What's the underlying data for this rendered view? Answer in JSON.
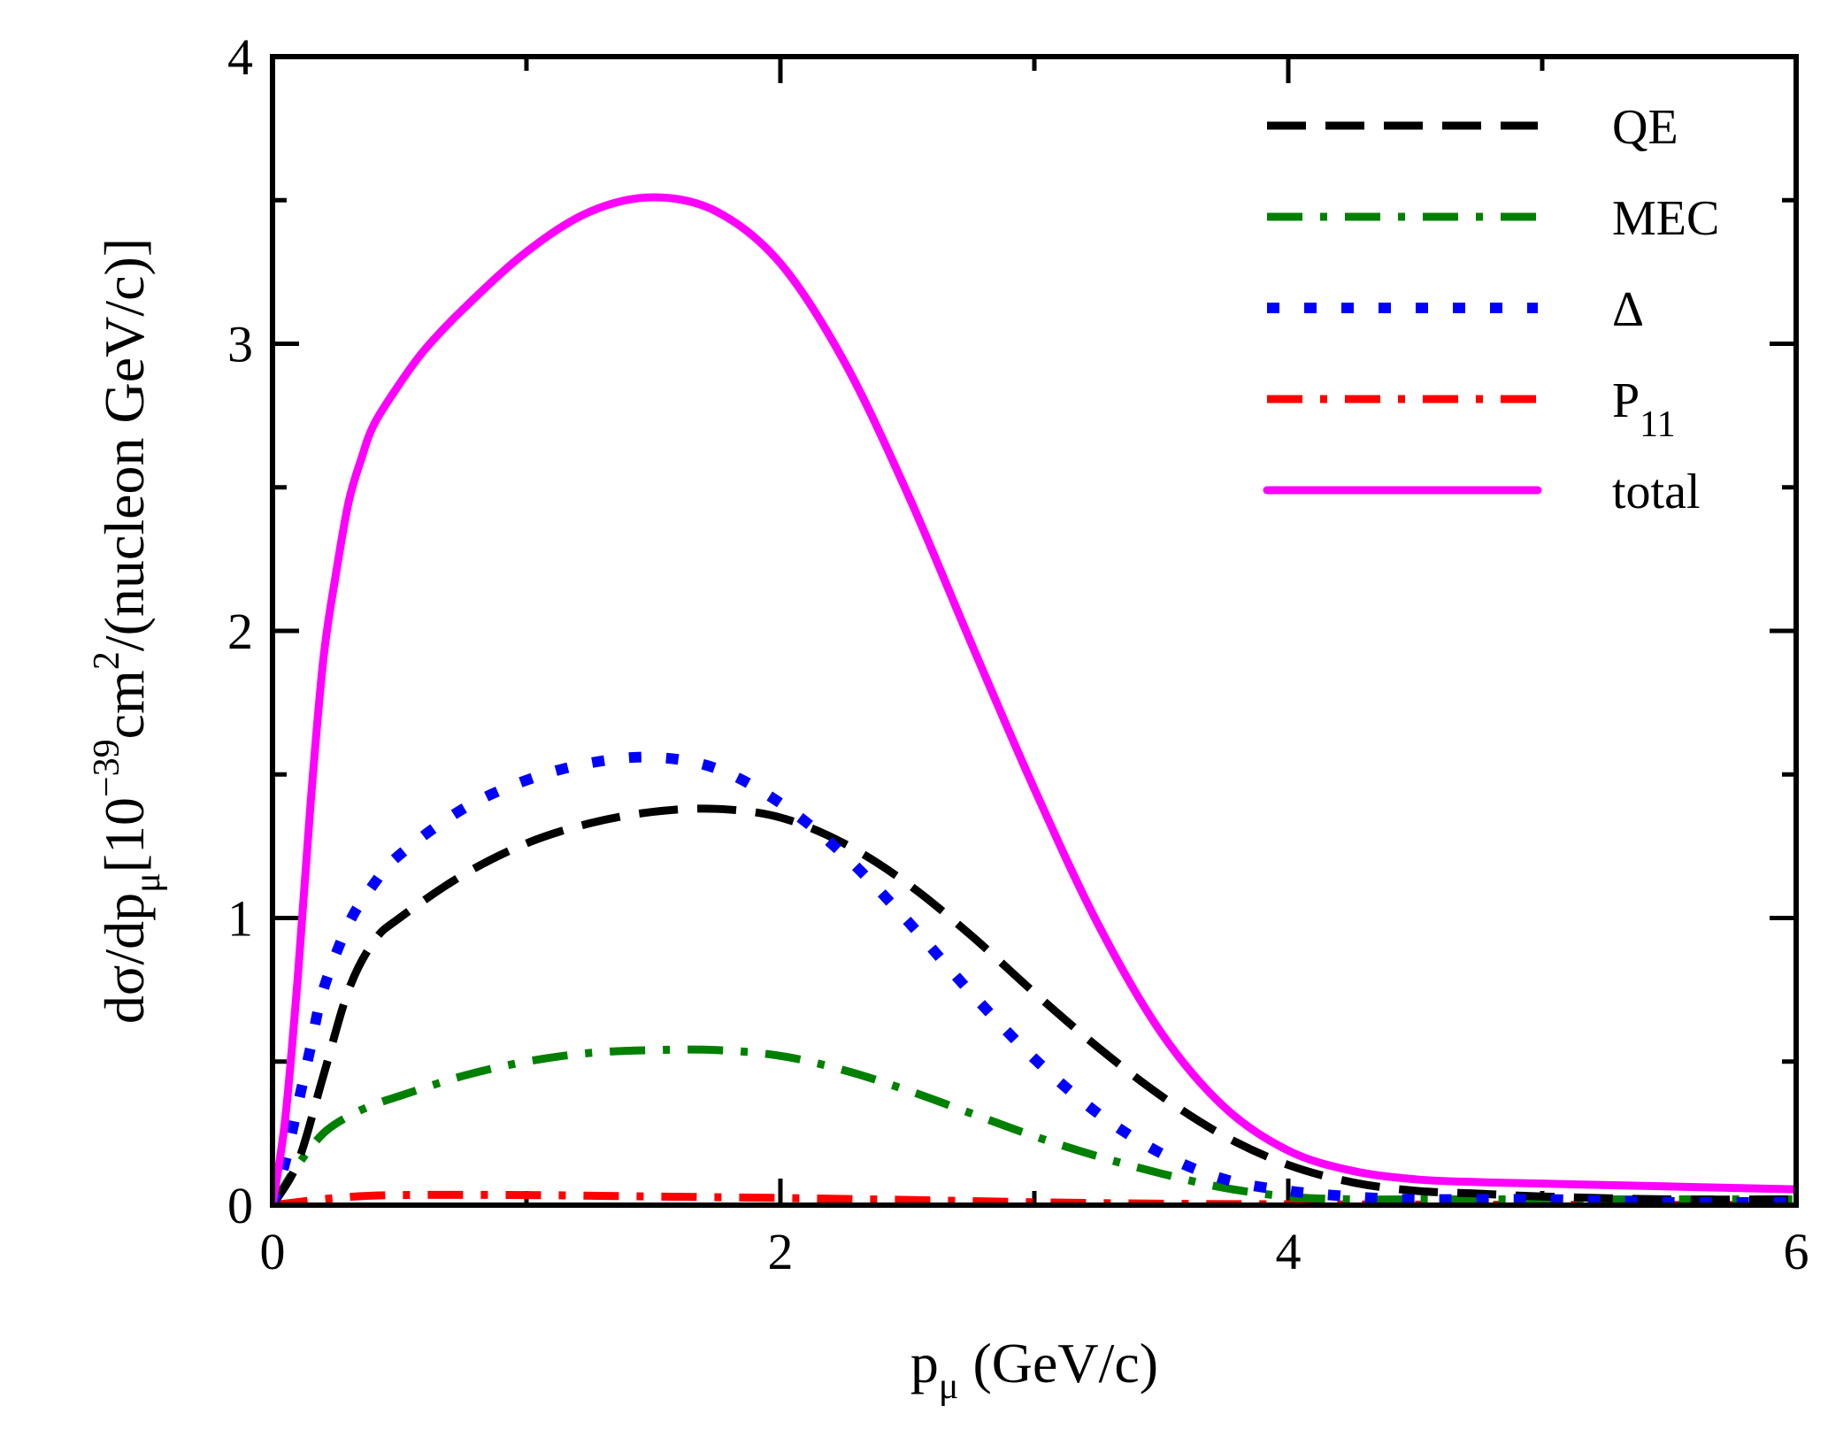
{
  "chart_data": {
    "type": "line",
    "title": "",
    "xlabel_main": "p",
    "xlabel_sub": "μ",
    "xlabel_units": " (GeV/c)",
    "ylabel_prefix": "dσ/dp",
    "ylabel_sub": "μ",
    "ylabel_mid1": "[10",
    "ylabel_exp": "−39",
    "ylabel_mid2": "cm",
    "ylabel_exp2": "2",
    "ylabel_tail": "/(nucleon GeV/c)]",
    "xlim": [
      0,
      6
    ],
    "ylim": [
      0,
      4
    ],
    "xticks": [
      0,
      2,
      4,
      6
    ],
    "xtick_labels": [
      "0",
      "2",
      "4",
      "6"
    ],
    "yticks": [
      0,
      1,
      2,
      3,
      4
    ],
    "ytick_labels": [
      "0",
      "1",
      "2",
      "3",
      "4"
    ],
    "x_minor_step": 1,
    "y_minor_step": 0.5,
    "legend_position": "top-right",
    "series": [
      {
        "name": "QE",
        "label_main": "QE",
        "label_sub": "",
        "color": "#000000",
        "dash": "longdash",
        "x": [
          0.0,
          0.1,
          0.2,
          0.3,
          0.4,
          0.5,
          0.75,
          1.0,
          1.25,
          1.5,
          1.75,
          2.0,
          2.25,
          2.5,
          2.75,
          3.0,
          3.25,
          3.5,
          3.75,
          4.0,
          4.25,
          4.5,
          4.75,
          5.0,
          5.5,
          6.0
        ],
        "y": [
          0.0,
          0.15,
          0.45,
          0.75,
          0.92,
          1.0,
          1.15,
          1.26,
          1.33,
          1.37,
          1.38,
          1.35,
          1.26,
          1.12,
          0.94,
          0.74,
          0.55,
          0.38,
          0.24,
          0.14,
          0.08,
          0.05,
          0.04,
          0.03,
          0.02,
          0.02
        ]
      },
      {
        "name": "MEC",
        "label_main": "MEC",
        "label_sub": "",
        "color": "#008000",
        "dash": "dashdot",
        "x": [
          0.0,
          0.1,
          0.2,
          0.3,
          0.4,
          0.5,
          0.75,
          1.0,
          1.25,
          1.5,
          1.75,
          2.0,
          2.25,
          2.5,
          2.75,
          3.0,
          3.25,
          3.5,
          3.75,
          4.0,
          4.25,
          4.5,
          5.0,
          5.5,
          6.0
        ],
        "y": [
          0.0,
          0.14,
          0.25,
          0.31,
          0.35,
          0.38,
          0.45,
          0.5,
          0.53,
          0.54,
          0.54,
          0.52,
          0.47,
          0.4,
          0.32,
          0.24,
          0.17,
          0.11,
          0.06,
          0.03,
          0.02,
          0.02,
          0.02,
          0.02,
          0.02
        ]
      },
      {
        "name": "Δ",
        "label_main": "Δ",
        "label_sub": "",
        "color": "#0000ff",
        "dash": "dotted",
        "x": [
          0.0,
          0.05,
          0.1,
          0.15,
          0.2,
          0.3,
          0.4,
          0.5,
          0.75,
          1.0,
          1.25,
          1.5,
          1.75,
          2.0,
          2.25,
          2.5,
          2.75,
          3.0,
          3.25,
          3.5,
          3.75,
          4.0,
          4.25,
          4.5,
          5.0,
          5.5,
          6.0
        ],
        "y": [
          0.0,
          0.15,
          0.35,
          0.55,
          0.75,
          0.98,
          1.12,
          1.22,
          1.38,
          1.48,
          1.54,
          1.56,
          1.52,
          1.4,
          1.22,
          0.99,
          0.74,
          0.51,
          0.32,
          0.18,
          0.09,
          0.05,
          0.03,
          0.02,
          0.02,
          0.01,
          0.01
        ]
      },
      {
        "name": "P11",
        "label_main": "P",
        "label_sub": "11",
        "color": "#ff0000",
        "dash": "dashdot",
        "x": [
          0.0,
          0.25,
          0.5,
          1.0,
          1.5,
          2.0,
          2.5,
          3.0,
          3.5,
          4.0,
          5.0,
          6.0
        ],
        "y": [
          0.0,
          0.025,
          0.035,
          0.035,
          0.03,
          0.025,
          0.018,
          0.01,
          0.005,
          0.003,
          0.001,
          0.001
        ]
      },
      {
        "name": "total",
        "label_main": "total",
        "label_sub": "",
        "color": "#ff00ff",
        "dash": "solid",
        "x": [
          0.0,
          0.05,
          0.1,
          0.15,
          0.2,
          0.25,
          0.3,
          0.35,
          0.4,
          0.5,
          0.6,
          0.75,
          1.0,
          1.25,
          1.5,
          1.75,
          2.0,
          2.25,
          2.5,
          2.75,
          3.0,
          3.25,
          3.5,
          3.75,
          4.0,
          4.25,
          4.5,
          4.75,
          5.0,
          5.5,
          6.0
        ],
        "y": [
          0.0,
          0.3,
          0.8,
          1.4,
          1.9,
          2.2,
          2.45,
          2.6,
          2.72,
          2.86,
          2.98,
          3.12,
          3.32,
          3.46,
          3.51,
          3.46,
          3.28,
          2.94,
          2.48,
          1.96,
          1.45,
          0.98,
          0.6,
          0.34,
          0.19,
          0.12,
          0.09,
          0.08,
          0.075,
          0.065,
          0.055
        ]
      }
    ]
  }
}
